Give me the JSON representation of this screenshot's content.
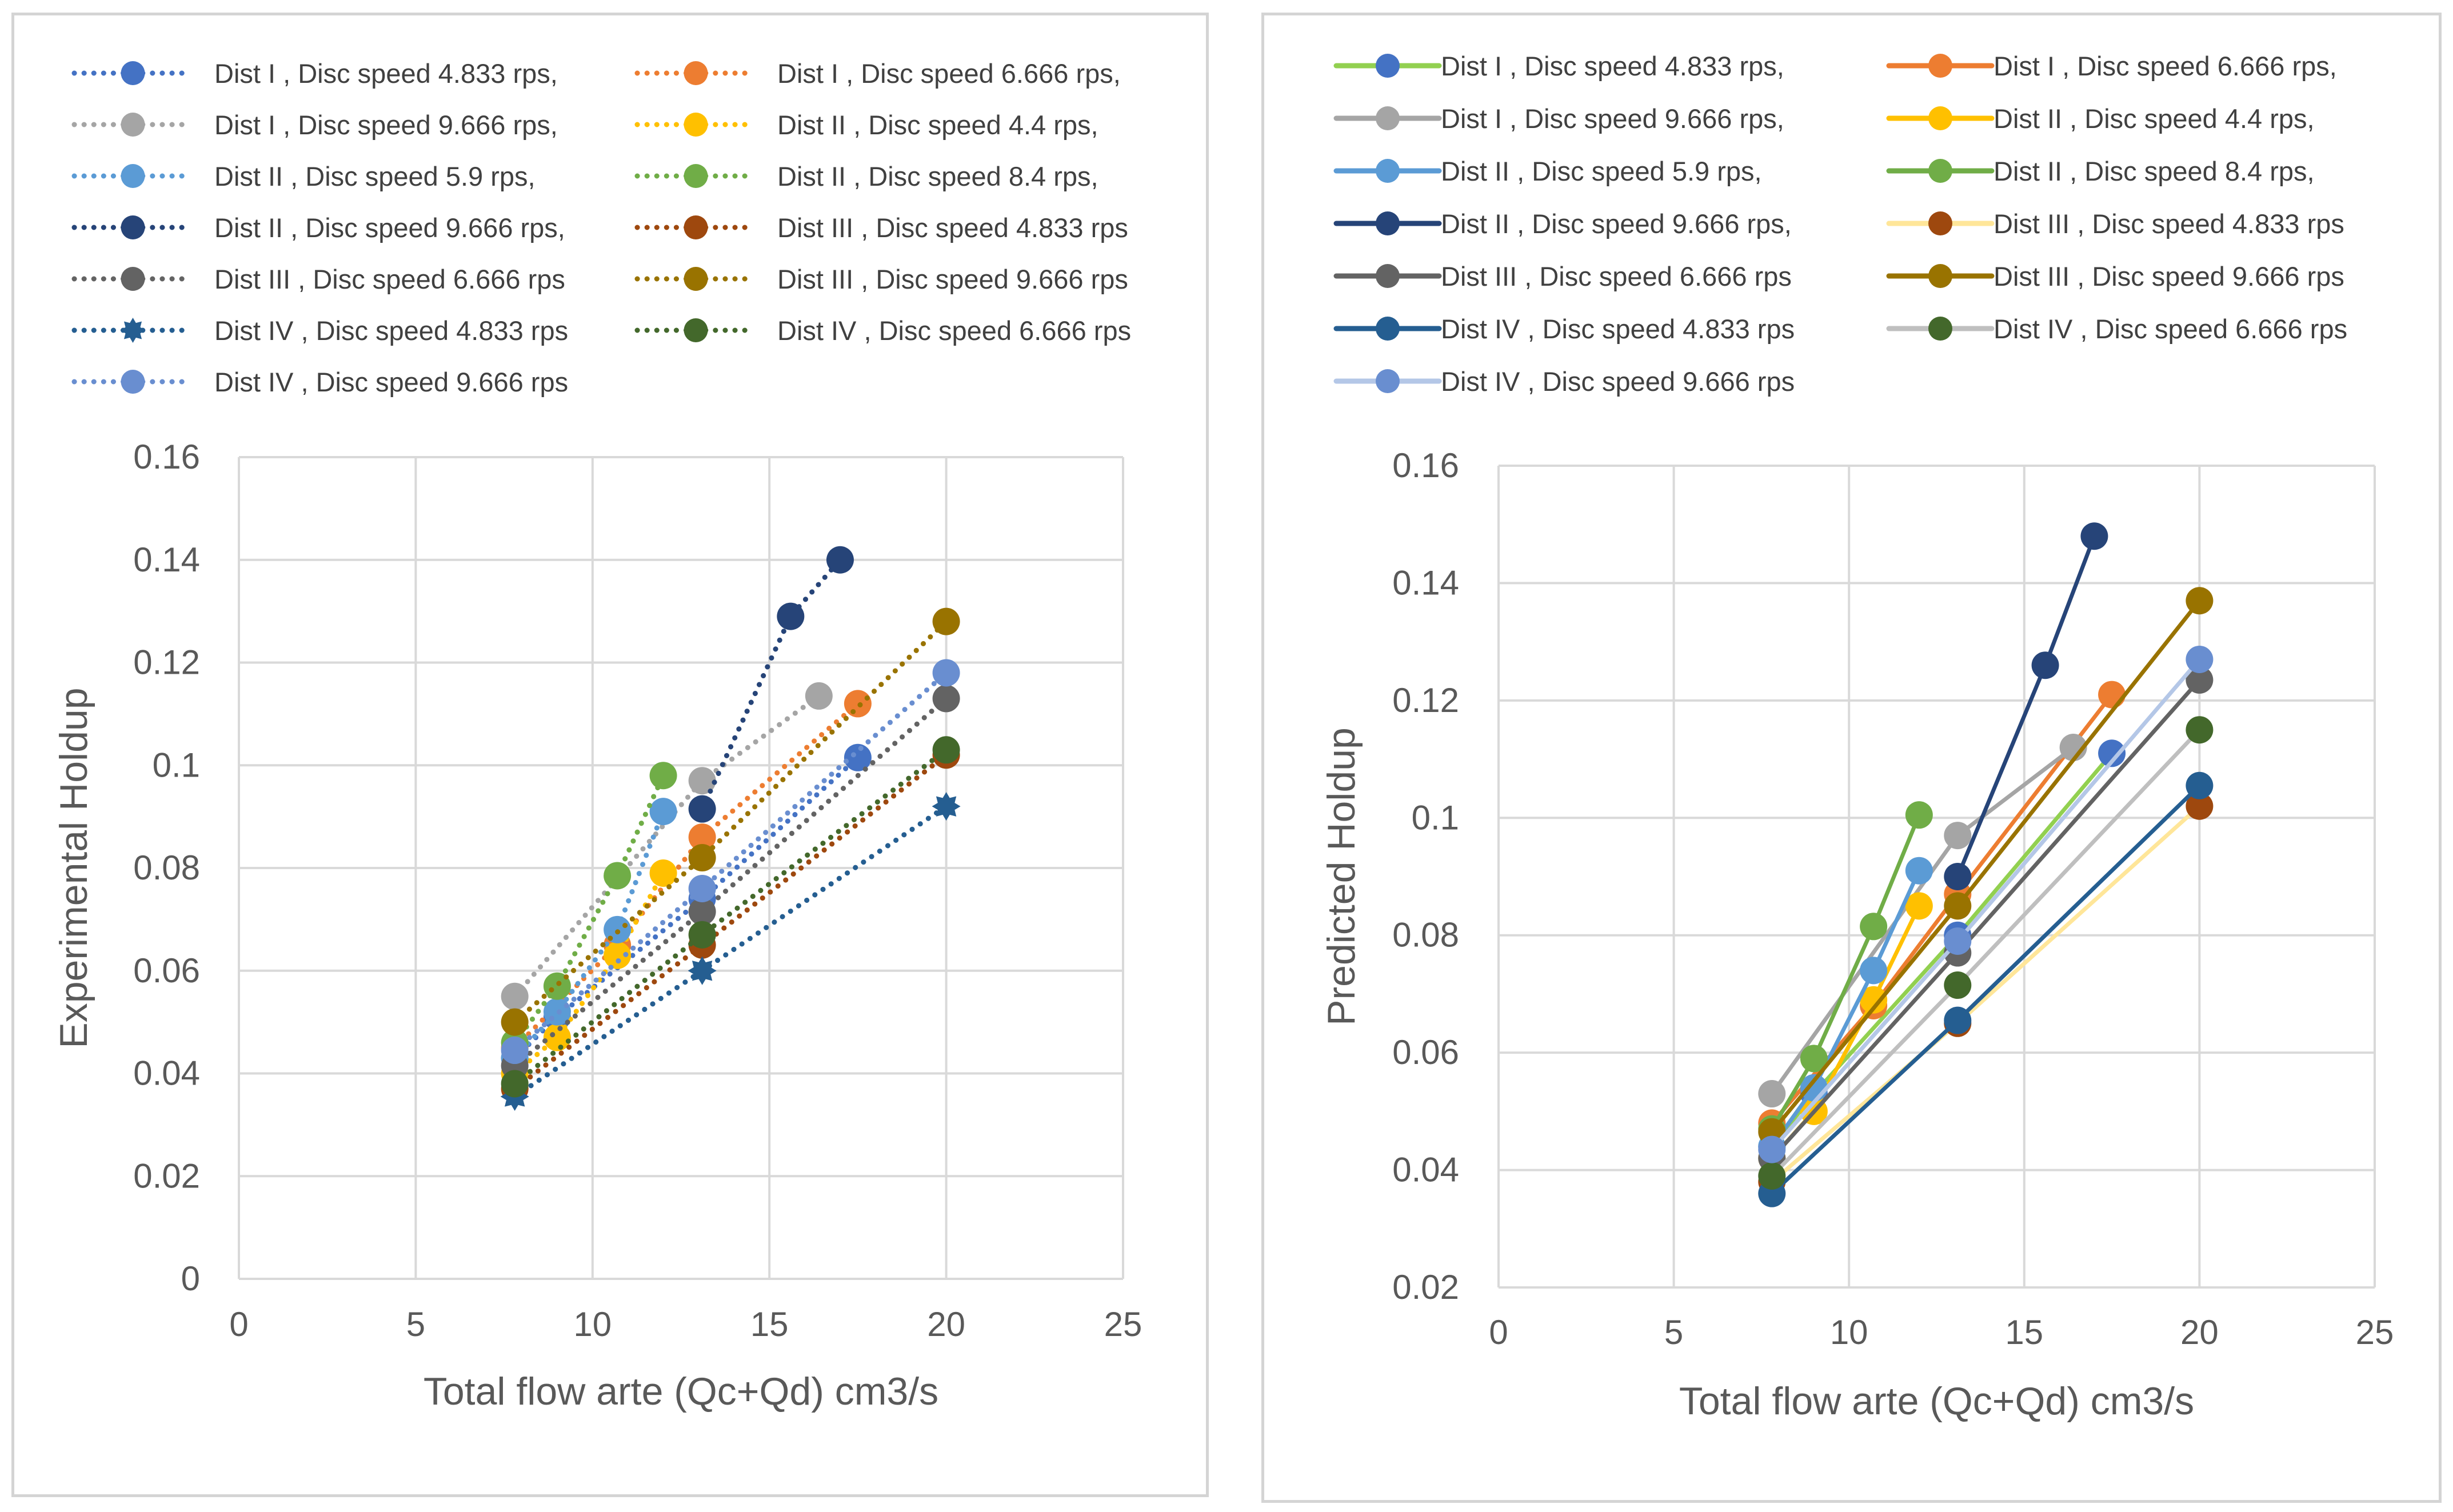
{
  "chart_data": [
    {
      "type": "scatter",
      "xlabel": "Total flow arte (Qc+Qd) cm3/s",
      "ylabel": "Experimental Holdup",
      "xlim": [
        0,
        25
      ],
      "ylim": [
        0,
        0.16
      ],
      "xticks": [
        0,
        5,
        10,
        15,
        20,
        25
      ],
      "yticks": [
        0,
        0.02,
        0.04,
        0.06,
        0.08,
        0.1,
        0.12,
        0.14,
        0.16
      ],
      "ytick_labels": [
        "0",
        "0.02",
        "0.04",
        "0.06",
        "0.08",
        "0.1",
        "0.12",
        "0.14",
        "0.16"
      ],
      "xtick_labels": [
        "0",
        "5",
        "10",
        "15",
        "20",
        "25"
      ],
      "grid": true,
      "line_style": "dotted",
      "legend_position": "top",
      "series": [
        {
          "name": "Dist I , Disc speed 4.833 rps,",
          "color": "#4472c4",
          "points": [
            [
              7.8,
              0.043
            ],
            [
              9.0,
              0.051
            ],
            [
              13.1,
              0.074
            ],
            [
              17.5,
              0.1015
            ]
          ]
        },
        {
          "name": "Dist I , Disc speed 6.666 rps,",
          "color": "#ed7d31",
          "points": [
            [
              7.8,
              0.045
            ],
            [
              10.7,
              0.065
            ],
            [
              13.1,
              0.086
            ],
            [
              17.5,
              0.112
            ]
          ]
        },
        {
          "name": "Dist I , Disc speed 9.666 rps,",
          "color": "#a5a5a5",
          "points": [
            [
              7.8,
              0.055
            ],
            [
              13.1,
              0.097
            ],
            [
              16.4,
              0.1135
            ]
          ]
        },
        {
          "name": "Dist II , Disc speed 4.4 rps,",
          "color": "#ffc000",
          "points": [
            [
              7.8,
              0.04
            ],
            [
              9.0,
              0.047
            ],
            [
              10.7,
              0.063
            ],
            [
              12.0,
              0.079
            ]
          ]
        },
        {
          "name": "Dist II , Disc speed  5.9 rps,",
          "color": "#5b9bd5",
          "points": [
            [
              7.8,
              0.043
            ],
            [
              9.0,
              0.052
            ],
            [
              10.7,
              0.068
            ],
            [
              12.0,
              0.091
            ]
          ]
        },
        {
          "name": "Dist II , Disc speed 8.4 rps,",
          "color": "#70ad47",
          "points": [
            [
              7.8,
              0.046
            ],
            [
              9.0,
              0.057
            ],
            [
              10.7,
              0.0785
            ],
            [
              12.0,
              0.098
            ]
          ]
        },
        {
          "name": "Dist II , Disc speed 9.666 rps,",
          "color": "#264478",
          "points": [
            [
              13.1,
              0.0915
            ],
            [
              15.6,
              0.129
            ],
            [
              17.0,
              0.14
            ]
          ]
        },
        {
          "name": "Dist III , Disc speed 4.833 rps",
          "color": "#9e480e",
          "points": [
            [
              7.8,
              0.037
            ],
            [
              13.1,
              0.065
            ],
            [
              20.0,
              0.102
            ]
          ]
        },
        {
          "name": "Dist III , Disc speed 6.666 rps",
          "color": "#636363",
          "points": [
            [
              7.8,
              0.0415
            ],
            [
              13.1,
              0.0715
            ],
            [
              20.0,
              0.113
            ]
          ]
        },
        {
          "name": "Dist III , Disc speed 9.666 rps",
          "color": "#997300",
          "points": [
            [
              7.8,
              0.05
            ],
            [
              13.1,
              0.082
            ],
            [
              20.0,
              0.128
            ]
          ]
        },
        {
          "name": "Dist IV , Disc speed 4.833 rps",
          "color": "#255e91",
          "marker": "star",
          "points": [
            [
              7.8,
              0.0355
            ],
            [
              13.1,
              0.06
            ],
            [
              20.0,
              0.092
            ]
          ]
        },
        {
          "name": "Dist IV , Disc speed 6.666 rps",
          "color": "#43682b",
          "points": [
            [
              7.8,
              0.038
            ],
            [
              13.1,
              0.067
            ],
            [
              20.0,
              0.103
            ]
          ]
        },
        {
          "name": "Dist IV , Disc speed 9.666 rps",
          "color": "#698ed0",
          "points": [
            [
              7.8,
              0.0445
            ],
            [
              13.1,
              0.076
            ],
            [
              20.0,
              0.118
            ]
          ]
        }
      ]
    },
    {
      "type": "line",
      "xlabel": "Total flow arte (Qc+Qd) cm3/s",
      "ylabel": "Predicted Holdup",
      "xlim": [
        0,
        25
      ],
      "ylim": [
        0.02,
        0.16
      ],
      "xticks": [
        0,
        5,
        10,
        15,
        20,
        25
      ],
      "yticks": [
        0.02,
        0.04,
        0.06,
        0.08,
        0.1,
        0.12,
        0.14,
        0.16
      ],
      "ytick_labels": [
        "0.02",
        "0.04",
        "0.06",
        "0.08",
        "0.1",
        "0.12",
        "0.14",
        "0.16"
      ],
      "xtick_labels": [
        "0",
        "5",
        "10",
        "15",
        "20",
        "25"
      ],
      "grid": true,
      "line_style": "solid",
      "legend_position": "top",
      "series": [
        {
          "name": "Dist I , Disc speed 4.833 rps,",
          "color": "#92d050",
          "marker_color": "#4472c4",
          "points": [
            [
              7.8,
              0.044
            ],
            [
              9.0,
              0.053
            ],
            [
              13.1,
              0.08
            ],
            [
              17.5,
              0.111
            ]
          ]
        },
        {
          "name": "Dist I , Disc speed 6.666 rps,",
          "color": "#ed7d31",
          "points": [
            [
              7.8,
              0.048
            ],
            [
              10.7,
              0.068
            ],
            [
              13.1,
              0.087
            ],
            [
              17.5,
              0.121
            ]
          ]
        },
        {
          "name": "Dist I , Disc speed 9.666 rps,",
          "color": "#a5a5a5",
          "points": [
            [
              7.8,
              0.053
            ],
            [
              13.1,
              0.097
            ],
            [
              16.4,
              0.112
            ]
          ]
        },
        {
          "name": "Dist II , Disc speed 4.4 rps,",
          "color": "#ffc000",
          "points": [
            [
              7.8,
              0.042
            ],
            [
              9.0,
              0.05
            ],
            [
              10.7,
              0.069
            ],
            [
              12.0,
              0.085
            ]
          ]
        },
        {
          "name": "Dist II , Disc speed  5.9 rps,",
          "color": "#5b9bd5",
          "points": [
            [
              7.8,
              0.044
            ],
            [
              9.0,
              0.054
            ],
            [
              10.7,
              0.074
            ],
            [
              12.0,
              0.091
            ]
          ]
        },
        {
          "name": "Dist II , Disc speed 8.4 rps,",
          "color": "#70ad47",
          "points": [
            [
              7.8,
              0.047
            ],
            [
              9.0,
              0.059
            ],
            [
              10.7,
              0.0815
            ],
            [
              12.0,
              0.1005
            ]
          ]
        },
        {
          "name": "Dist II , Disc speed 9.666 rps,",
          "color": "#264478",
          "points": [
            [
              13.1,
              0.09
            ],
            [
              15.6,
              0.126
            ],
            [
              17.0,
              0.148
            ]
          ]
        },
        {
          "name": "Dist III , Disc speed 4.833 rps",
          "color": "#ffe699",
          "marker_color": "#9e480e",
          "points": [
            [
              7.8,
              0.038
            ],
            [
              13.1,
              0.065
            ],
            [
              20.0,
              0.102
            ]
          ]
        },
        {
          "name": "Dist III , Disc speed 6.666 rps",
          "color": "#636363",
          "points": [
            [
              7.8,
              0.042
            ],
            [
              13.1,
              0.077
            ],
            [
              20.0,
              0.1235
            ]
          ]
        },
        {
          "name": "Dist III , Disc speed 9.666 rps",
          "color": "#997300",
          "points": [
            [
              7.8,
              0.0465
            ],
            [
              13.1,
              0.085
            ],
            [
              20.0,
              0.137
            ]
          ]
        },
        {
          "name": "Dist IV , Disc speed 4.833 rps",
          "color": "#255e91",
          "points": [
            [
              7.8,
              0.036
            ],
            [
              13.1,
              0.0655
            ],
            [
              20.0,
              0.1055
            ]
          ]
        },
        {
          "name": "Dist IV , Disc speed 6.666 rps",
          "color": "#bfbfbf",
          "marker_color": "#43682b",
          "points": [
            [
              7.8,
              0.039
            ],
            [
              13.1,
              0.0715
            ],
            [
              20.0,
              0.115
            ]
          ]
        },
        {
          "name": "Dist IV , Disc speed 9.666 rps",
          "color": "#b4c7e7",
          "marker_color": "#698ed0",
          "points": [
            [
              7.8,
              0.0435
            ],
            [
              13.1,
              0.079
            ],
            [
              20.0,
              0.127
            ]
          ]
        }
      ]
    }
  ]
}
